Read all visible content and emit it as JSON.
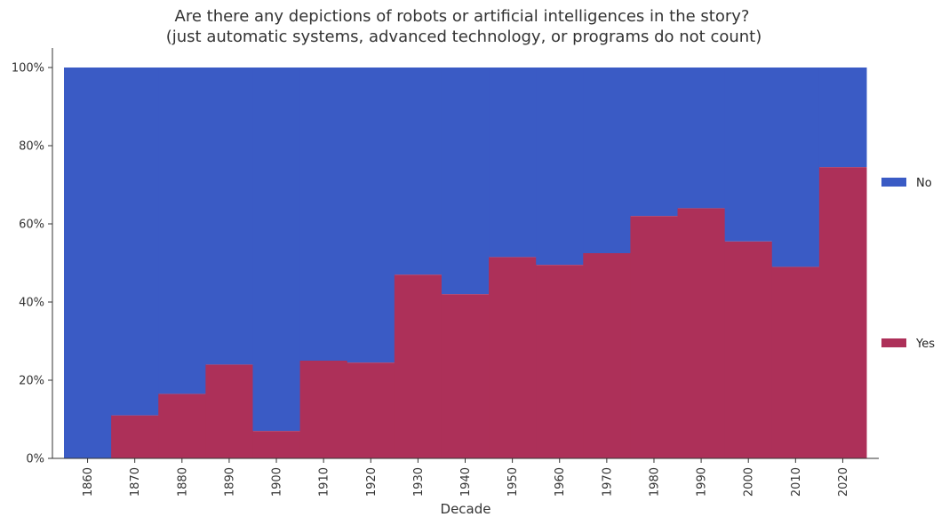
{
  "chart_data": {
    "type": "area",
    "title": "Are there any depictions of robots or artificial intelligences in the story?",
    "subtitle": "(just automatic systems, advanced technology, or programs do not count)",
    "xlabel": "Decade",
    "ylabel": "",
    "categories": [
      "1860",
      "1870",
      "1880",
      "1890",
      "1900",
      "1910",
      "1920",
      "1930",
      "1940",
      "1950",
      "1960",
      "1970",
      "1980",
      "1990",
      "2000",
      "2010",
      "2020"
    ],
    "y_ticks": [
      "0%",
      "20%",
      "40%",
      "60%",
      "80%",
      "100%"
    ],
    "ylim": [
      0,
      100
    ],
    "stacked": true,
    "step": true,
    "grid": false,
    "legend_position": "right",
    "series": [
      {
        "name": "Yes",
        "color": "#ad3059",
        "values": [
          0,
          11,
          16.5,
          24,
          7,
          25,
          24.5,
          47,
          42,
          51.5,
          49.5,
          52.5,
          62,
          64,
          55.5,
          49,
          74.5
        ]
      },
      {
        "name": "No",
        "color": "#3a5bc5",
        "values": [
          100,
          89,
          83.5,
          76,
          93,
          75,
          75.5,
          53,
          58,
          48.5,
          50.5,
          47.5,
          38,
          36,
          44.5,
          51,
          25.5
        ]
      }
    ]
  }
}
